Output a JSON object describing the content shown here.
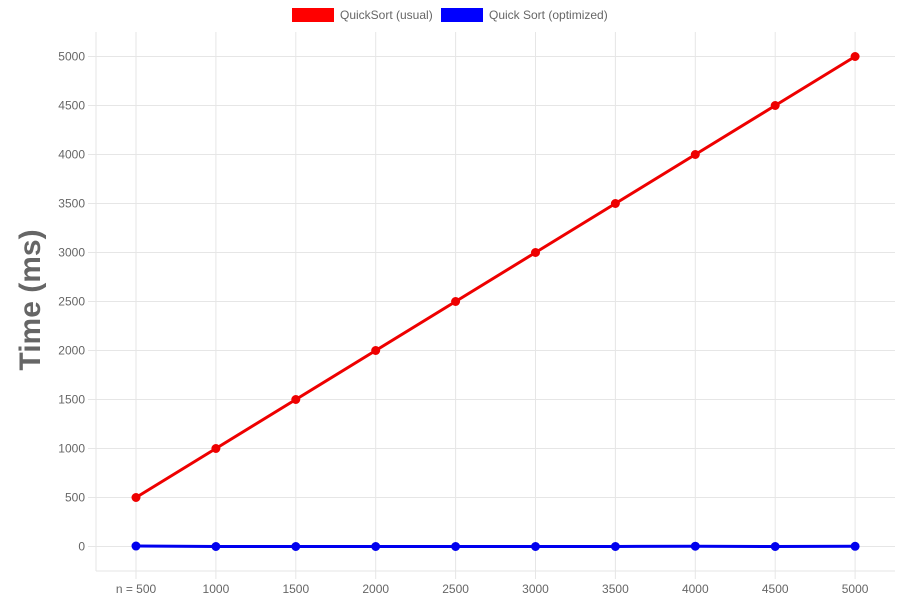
{
  "chart_data": {
    "type": "line",
    "title": "",
    "xlabel": "",
    "ylabel": "Time (ms)",
    "x": [
      "n = 500",
      "1000",
      "1500",
      "2000",
      "2500",
      "3000",
      "3500",
      "4000",
      "4500",
      "5000"
    ],
    "ylim": [
      -250,
      5250
    ],
    "yticks": [
      0,
      500,
      1000,
      1500,
      2000,
      2500,
      3000,
      3500,
      4000,
      4500,
      5000
    ],
    "grid": true,
    "legend_position": "top",
    "series": [
      {
        "name": "QuickSort (usual)",
        "color": "#ee0000",
        "legend_color": "#ff0000",
        "values": [
          500,
          1000,
          1500,
          2000,
          2500,
          3000,
          3500,
          4000,
          4500,
          5000
        ]
      },
      {
        "name": "Quick Sort (optimized)",
        "color": "#0000ee",
        "legend_color": "#0000ff",
        "values": [
          5,
          0,
          0,
          0,
          0,
          0,
          0,
          3,
          0,
          2
        ]
      }
    ]
  }
}
